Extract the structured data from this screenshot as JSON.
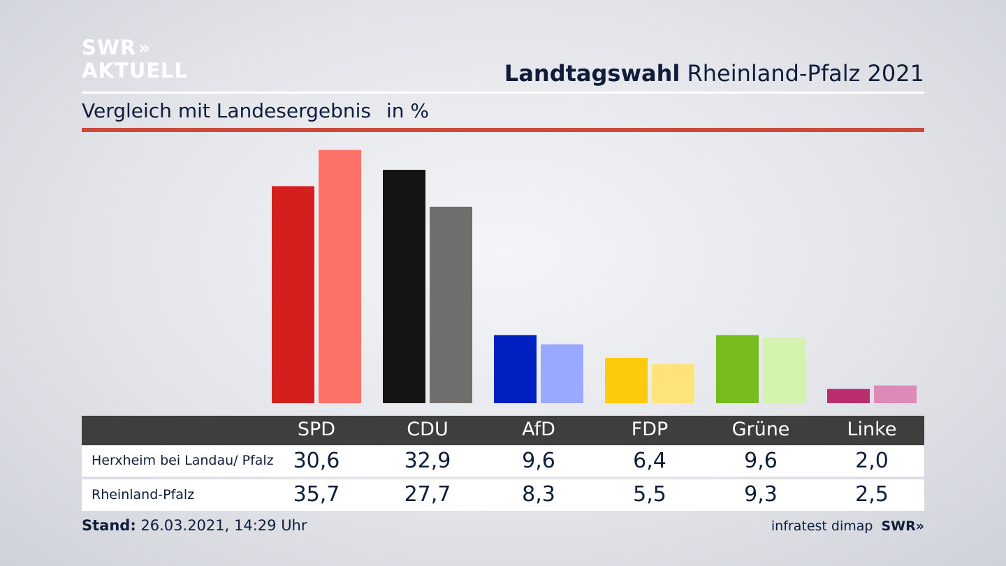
{
  "logo": {
    "line1": "SWR",
    "arrows": "»",
    "line2": "AKTUELL"
  },
  "header": {
    "title_bold": "Landtagswahl",
    "title_rest": "Rheinland-Pfalz 2021"
  },
  "subheader": {
    "text": "Vergleich mit Landesergebnis",
    "unit": "in %"
  },
  "footer": {
    "stand_label": "Stand:",
    "stand_value": "26.03.2021, 14:29 Uhr",
    "source": "infratest dimap",
    "swr_logo": "SWR»"
  },
  "chart_data": {
    "type": "bar",
    "categories": [
      "SPD",
      "CDU",
      "AfD",
      "FDP",
      "Grüne",
      "Linke"
    ],
    "series": [
      {
        "name": "Herxheim bei Landau/ Pfalz",
        "values": [
          30.6,
          32.9,
          9.6,
          6.4,
          9.6,
          2.0
        ],
        "labels": [
          "30,6",
          "32,9",
          "9,6",
          "6,4",
          "9,6",
          "2,0"
        ],
        "colors": [
          "#d51e1e",
          "#141414",
          "#0020c2",
          "#fecb0a",
          "#77bc1f",
          "#bb2e6e"
        ]
      },
      {
        "name": "Rheinland-Pfalz",
        "values": [
          35.7,
          27.7,
          8.3,
          5.5,
          9.3,
          2.5
        ],
        "labels": [
          "35,7",
          "27,7",
          "8,3",
          "5,5",
          "9,3",
          "2,5"
        ],
        "colors": [
          "#fe7168",
          "#706f6d",
          "#99a9ff",
          "#fee27a",
          "#d3f3ae",
          "#dd8ab9"
        ]
      }
    ],
    "ylim": [
      0,
      37
    ],
    "legend": "table-below"
  }
}
